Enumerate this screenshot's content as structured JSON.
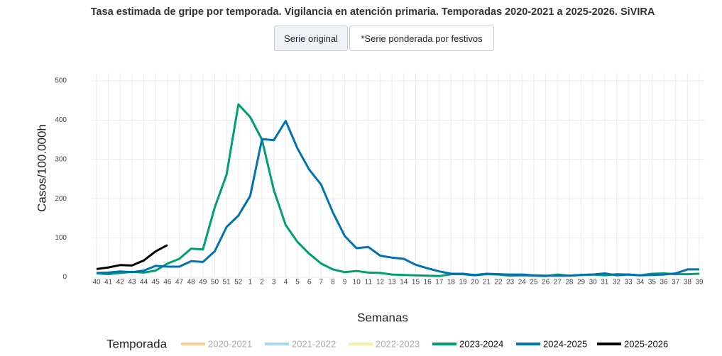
{
  "chart_data": {
    "type": "line",
    "title": "Tasa estimada de gripe por temporada. Vigilancia en atención primaria. Temporadas 2020-2021 a 2025-2026. SiVIRA",
    "x_label": "Semanas",
    "y_label": "Casos/100.000h",
    "legend_title": "Temporada",
    "categories": [
      "40",
      "41",
      "42",
      "43",
      "44",
      "45",
      "46",
      "47",
      "48",
      "49",
      "50",
      "51",
      "52",
      "1",
      "2",
      "3",
      "4",
      "5",
      "6",
      "7",
      "8",
      "9",
      "10",
      "11",
      "12",
      "13",
      "14",
      "15",
      "16",
      "17",
      "18",
      "19",
      "20",
      "21",
      "22",
      "23",
      "24",
      "25",
      "26",
      "27",
      "28",
      "29",
      "30",
      "31",
      "32",
      "33",
      "34",
      "35",
      "36",
      "37",
      "38",
      "39"
    ],
    "ylim": [
      0,
      520
    ],
    "yticks": [
      0,
      100,
      200,
      300,
      400,
      500
    ],
    "grid": true,
    "legend": "bottom",
    "series": [
      {
        "name": "2020-2021",
        "color": "#f9cf98",
        "hidden": true,
        "values": [
          null,
          null,
          null,
          null,
          null,
          null,
          null,
          null,
          null,
          null,
          null,
          null,
          null,
          null,
          null,
          null,
          null,
          null,
          null,
          null,
          null,
          null,
          null,
          null,
          null,
          null,
          null,
          null,
          null,
          null,
          null,
          null,
          null,
          null,
          null,
          null,
          null,
          null,
          null,
          null,
          null,
          null,
          null,
          null,
          null,
          null,
          null,
          null,
          null,
          null,
          null,
          null
        ]
      },
      {
        "name": "2021-2022",
        "color": "#a6d8f5",
        "hidden": true,
        "values": [
          null,
          null,
          null,
          null,
          null,
          null,
          null,
          null,
          null,
          null,
          null,
          null,
          null,
          null,
          null,
          null,
          null,
          null,
          null,
          null,
          null,
          null,
          null,
          null,
          null,
          null,
          null,
          null,
          null,
          null,
          null,
          null,
          null,
          null,
          null,
          null,
          null,
          null,
          null,
          null,
          null,
          null,
          null,
          null,
          null,
          null,
          null,
          null,
          null,
          null,
          null,
          null
        ]
      },
      {
        "name": "2022-2023",
        "color": "#f8f0a8",
        "hidden": true,
        "values": [
          null,
          null,
          null,
          null,
          null,
          null,
          null,
          null,
          null,
          null,
          null,
          null,
          null,
          null,
          null,
          null,
          null,
          null,
          null,
          null,
          null,
          null,
          null,
          null,
          null,
          null,
          null,
          null,
          null,
          null,
          null,
          null,
          null,
          null,
          null,
          null,
          null,
          null,
          null,
          null,
          null,
          null,
          null,
          null,
          null,
          null,
          null,
          null,
          null,
          null,
          null,
          null
        ]
      },
      {
        "name": "2023-2024",
        "color": "#009e73",
        "hidden": false,
        "values": [
          10,
          8,
          11,
          14,
          12,
          17,
          35,
          47,
          73,
          71,
          178,
          261,
          440,
          408,
          350,
          222,
          133,
          90,
          60,
          35,
          20,
          13,
          16,
          12,
          11,
          7,
          6,
          5,
          4,
          3,
          8,
          8,
          5,
          8,
          7,
          4,
          5,
          4,
          3,
          7,
          4,
          6,
          7,
          5,
          8,
          7,
          5,
          9,
          10,
          8,
          8,
          9
        ]
      },
      {
        "name": "2024-2025",
        "color": "#0072b2",
        "hidden": false,
        "values": [
          11,
          12,
          15,
          13,
          17,
          29,
          27,
          27,
          41,
          39,
          66,
          128,
          157,
          207,
          352,
          349,
          398,
          328,
          274,
          236,
          165,
          105,
          74,
          77,
          55,
          50,
          47,
          32,
          23,
          15,
          9,
          9,
          6,
          9,
          8,
          7,
          7,
          5,
          4,
          4,
          4,
          6,
          7,
          10,
          5,
          7,
          5,
          6,
          7,
          10,
          20,
          20
        ]
      },
      {
        "name": "2025-2026",
        "color": "#000000",
        "hidden": false,
        "values": [
          21,
          25,
          31,
          30,
          43,
          66,
          82,
          null,
          null,
          null,
          null,
          null,
          null,
          null,
          null,
          null,
          null,
          null,
          null,
          null,
          null,
          null,
          null,
          null,
          null,
          null,
          null,
          null,
          null,
          null,
          null,
          null,
          null,
          null,
          null,
          null,
          null,
          null,
          null,
          null,
          null,
          null,
          null,
          null,
          null,
          null,
          null,
          null,
          null,
          null,
          null,
          null
        ]
      }
    ]
  },
  "buttons": [
    "Serie original",
    "*Serie ponderada por festivos"
  ]
}
